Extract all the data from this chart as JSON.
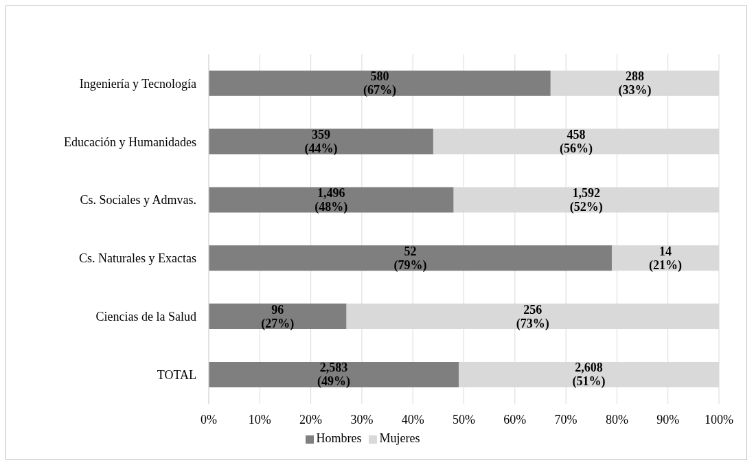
{
  "chart_data": {
    "type": "bar",
    "orientation": "horizontal",
    "stacked": true,
    "categories": [
      "Ingeniería y Tecnología",
      "Educación y Humanidades",
      "Cs. Sociales y Admvas.",
      "Cs. Naturales y Exactas",
      "Ciencias de la Salud",
      "TOTAL"
    ],
    "series": [
      {
        "name": "Hombres",
        "color": "#7f7f7f",
        "values": [
          67,
          44,
          48,
          79,
          27,
          49
        ],
        "value_labels": [
          "580\n(67%)",
          "359\n(44%)",
          "1,496\n(48%)",
          "52\n(79%)",
          "96\n(27%)",
          "2,583\n(49%)"
        ]
      },
      {
        "name": "Mujeres",
        "color": "#d9d9d9",
        "values": [
          33,
          56,
          52,
          21,
          73,
          51
        ],
        "value_labels": [
          "288\n(33%)",
          "458\n(56%)",
          "1,592\n(52%)",
          "14\n(21%)",
          "256\n(73%)",
          "2,608\n(51%)"
        ]
      }
    ],
    "xlim": [
      0,
      100
    ],
    "xticks": [
      {
        "value": 0,
        "label": "0%"
      },
      {
        "value": 10,
        "label": "10%"
      },
      {
        "value": 20,
        "label": "20%"
      },
      {
        "value": 30,
        "label": "30%"
      },
      {
        "value": 40,
        "label": "40%"
      },
      {
        "value": 50,
        "label": "50%"
      },
      {
        "value": 60,
        "label": "60%"
      },
      {
        "value": 70,
        "label": "70%"
      },
      {
        "value": 80,
        "label": "80%"
      },
      {
        "value": 90,
        "label": "90%"
      },
      {
        "value": 100,
        "label": "100%"
      }
    ],
    "grid": "x",
    "legend": "bottom"
  }
}
